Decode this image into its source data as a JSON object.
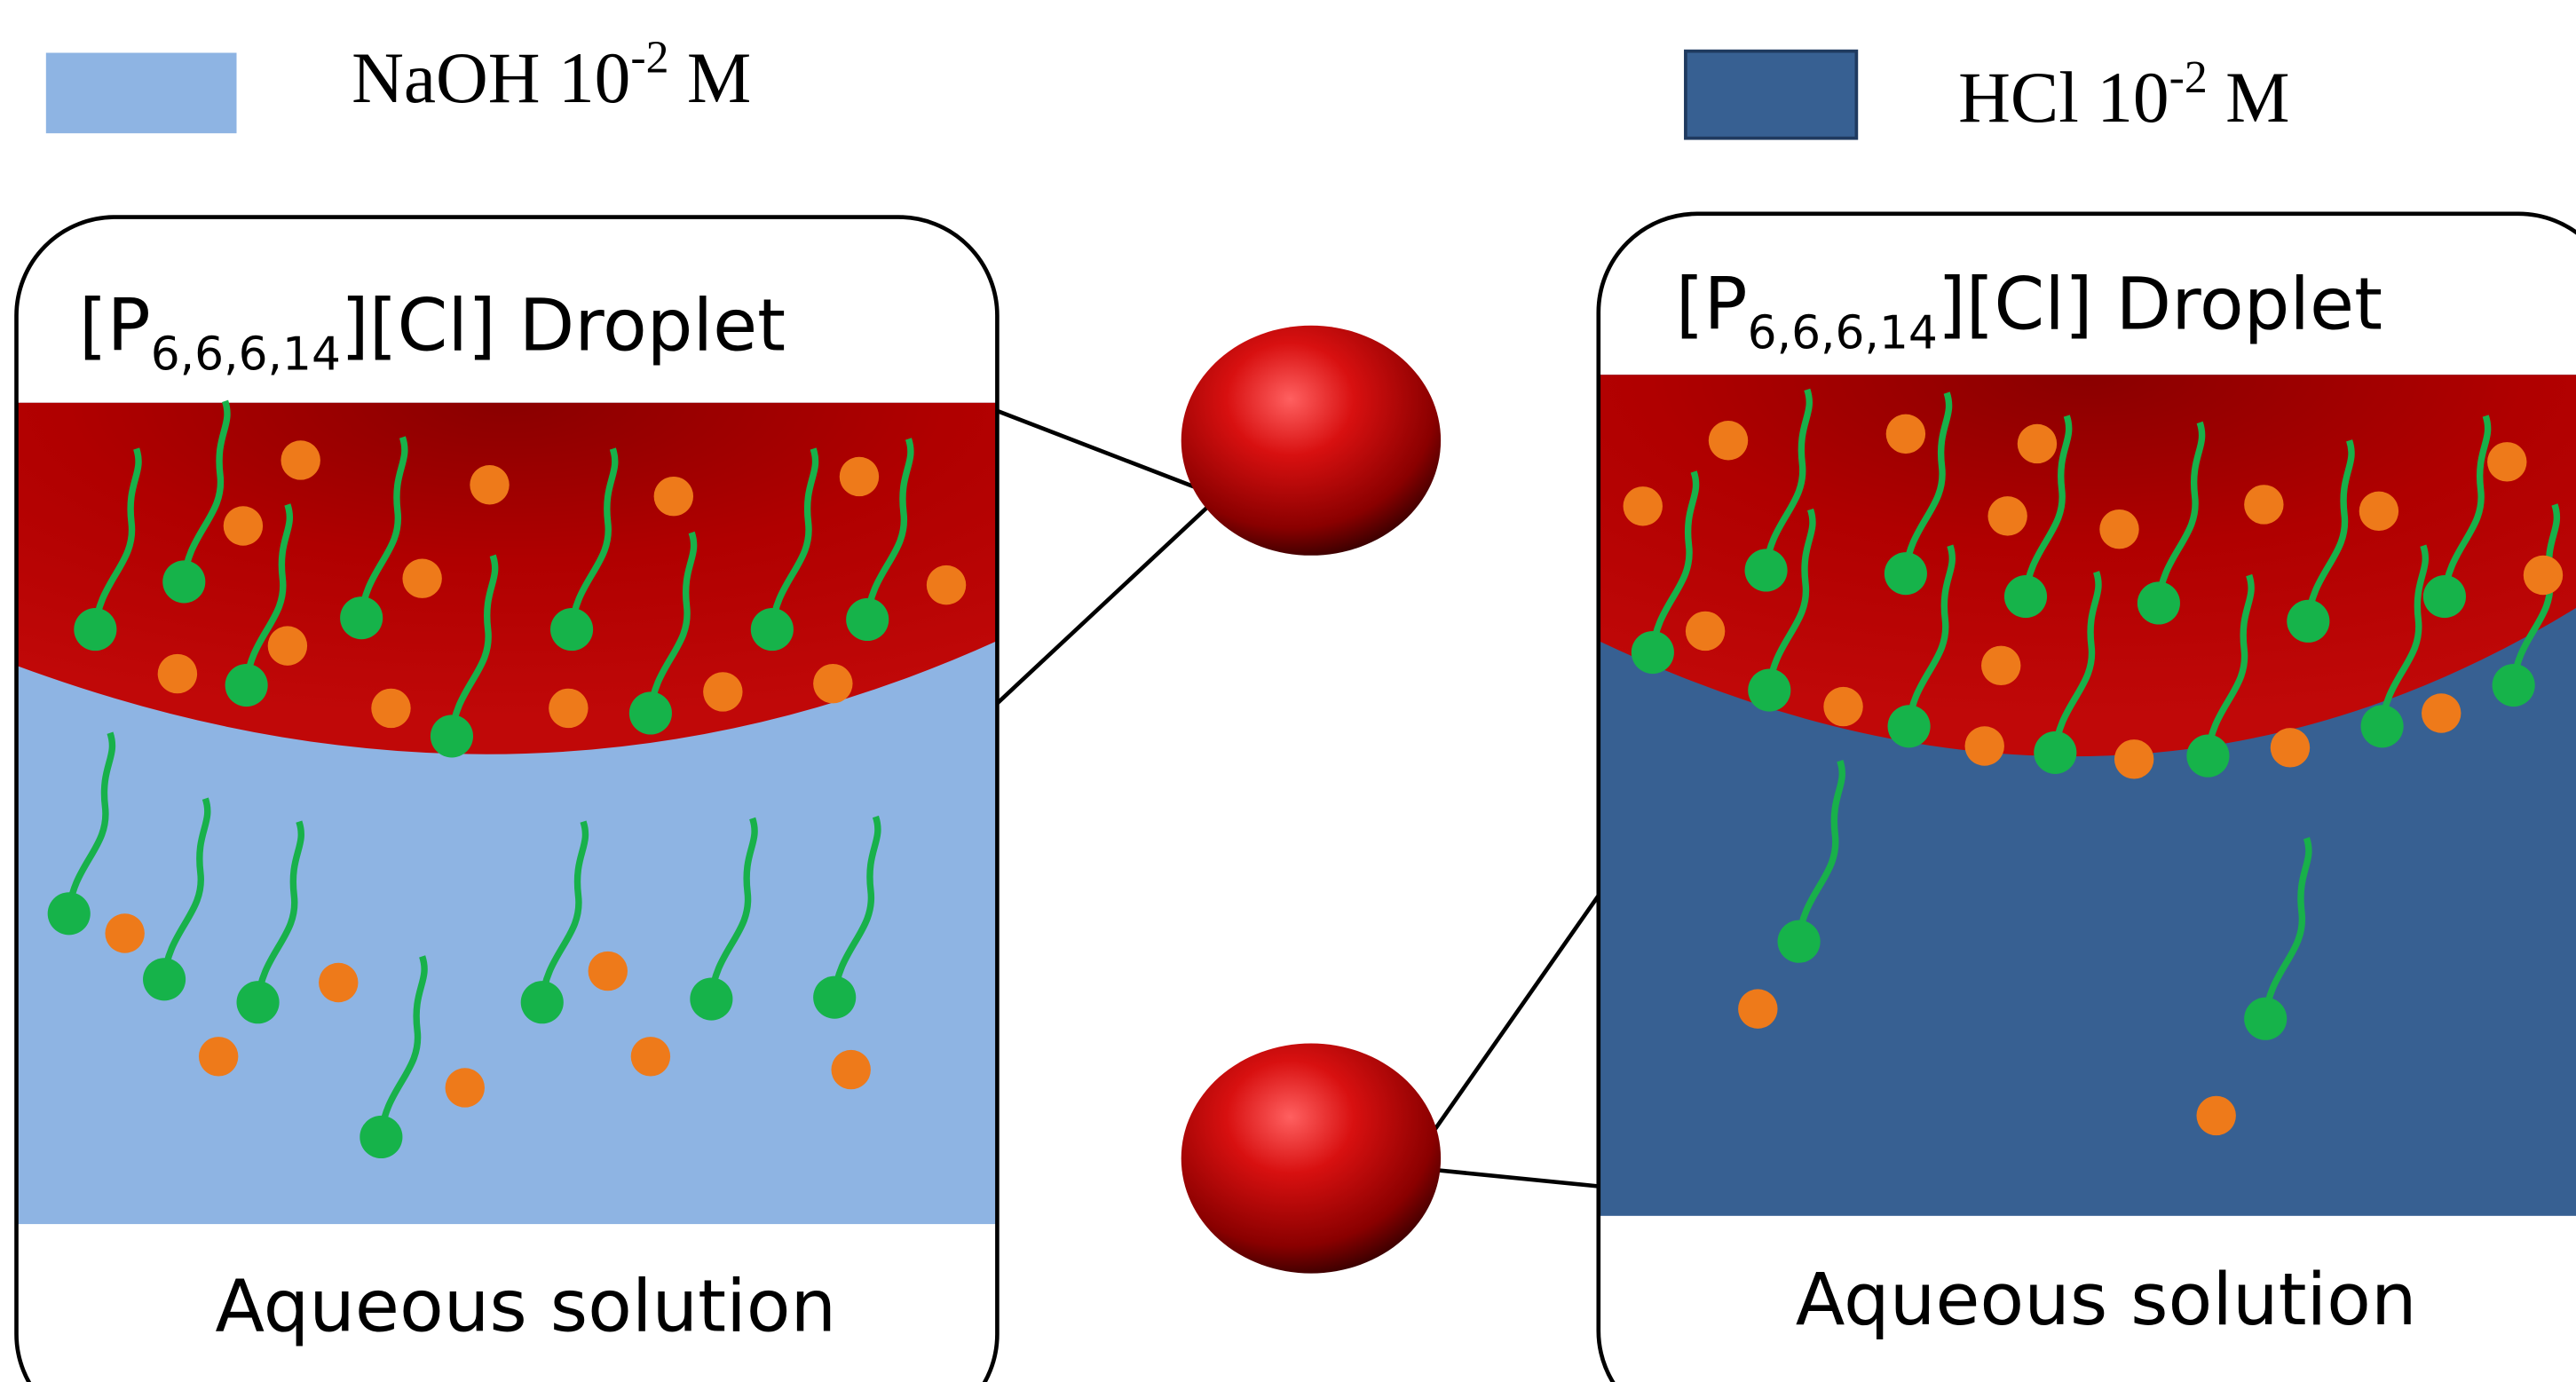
{
  "legend": [
    {
      "label": "NaOH 10",
      "exponent": "-2",
      "unit": " M"
    },
    {
      "label": "HCl 10",
      "exponent": "-2",
      "unit": " M"
    }
  ],
  "panels": [
    {
      "title_prefix": "[P",
      "subscript": "6,6,6,14",
      "title_suffix": "][Cl] Droplet",
      "bottom_label": "Aqueous solution"
    },
    {
      "title_prefix": "[P",
      "subscript": "6,6,6,14",
      "title_suffix": "][Cl] Droplet",
      "bottom_label": "Aqueous solution"
    }
  ]
}
